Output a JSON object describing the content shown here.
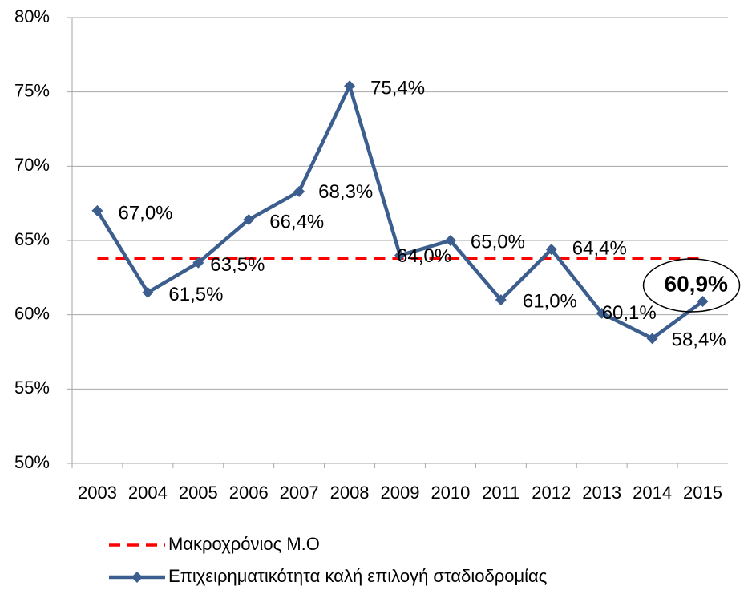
{
  "chart_data": {
    "type": "line",
    "categories": [
      "2003",
      "2004",
      "2005",
      "2006",
      "2007",
      "2008",
      "2009",
      "2010",
      "2011",
      "2012",
      "2013",
      "2014",
      "2015"
    ],
    "series": [
      {
        "name": "Μακροχρόνιος Μ.Ο",
        "color": "#ff0000",
        "dashed": true,
        "values": [
          63.8,
          63.8,
          63.8,
          63.8,
          63.8,
          63.8,
          63.8,
          63.8,
          63.8,
          63.8,
          63.8,
          63.8,
          63.8
        ]
      },
      {
        "name": "Επιχειρηματικότητα καλή επιλογή σταδιοδρομίας",
        "color": "#3b5e8f",
        "marker": "diamond",
        "values": [
          67.0,
          61.5,
          63.5,
          66.4,
          68.3,
          75.4,
          64.0,
          65.0,
          61.0,
          64.4,
          60.1,
          58.4,
          60.9
        ],
        "value_labels": [
          "67,0%",
          "61,5%",
          "63,5%",
          "66,4%",
          "68,3%",
          "75,4%",
          "64,0%",
          "65,0%",
          "61,0%",
          "64,4%",
          "60,1%",
          "58,4%",
          "60,9%"
        ]
      }
    ],
    "ylim": [
      50,
      80
    ],
    "yticks": [
      {
        "value": 50,
        "label": "50%"
      },
      {
        "value": 55,
        "label": "55%"
      },
      {
        "value": 60,
        "label": "60%"
      },
      {
        "value": 65,
        "label": "65%"
      },
      {
        "value": 70,
        "label": "70%"
      },
      {
        "value": 75,
        "label": "75%"
      },
      {
        "value": 80,
        "label": "80%"
      }
    ],
    "grid": true
  }
}
